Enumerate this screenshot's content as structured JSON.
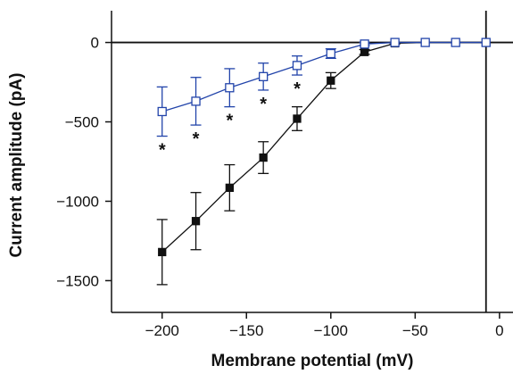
{
  "chart_data": {
    "type": "scatter",
    "title": "",
    "xlabel": "Membrane potential (mV)",
    "ylabel": "Current amplitude (pA)",
    "xlim": [
      -230,
      8
    ],
    "ylim": [
      -1700,
      200
    ],
    "xticks": [
      -200,
      -150,
      -100,
      -50,
      0
    ],
    "yticks": [
      0,
      -500,
      -1000,
      -1500
    ],
    "xtick_labels": [
      "−200",
      "−150",
      "−100",
      "−50",
      "0"
    ],
    "ytick_labels": [
      "0",
      "−500",
      "−1000",
      "−1500"
    ],
    "vertical_line_x": -8,
    "horizontal_line_y": 0,
    "grid": false,
    "series": [
      {
        "marker": "filled-square",
        "color": "#111111",
        "x": [
          -200,
          -180,
          -160,
          -140,
          -120,
          -100,
          -80,
          -62,
          -44,
          -26,
          -8
        ],
        "y": [
          -1320,
          -1125,
          -915,
          -725,
          -480,
          -240,
          -60,
          -5,
          0,
          0,
          0
        ],
        "err": [
          205,
          180,
          145,
          100,
          75,
          50,
          15,
          5,
          0,
          0,
          0
        ]
      },
      {
        "marker": "open-square",
        "color": "#2244aa",
        "x": [
          -200,
          -180,
          -160,
          -140,
          -120,
          -100,
          -80,
          -62,
          -44,
          -26,
          -8
        ],
        "y": [
          -435,
          -370,
          -285,
          -215,
          -145,
          -70,
          -10,
          0,
          0,
          0,
          0
        ],
        "err": [
          155,
          150,
          120,
          85,
          60,
          30,
          10,
          0,
          0,
          0,
          0
        ]
      }
    ],
    "annotations": [
      {
        "text": "*",
        "x": -200
      },
      {
        "text": "*",
        "x": -180
      },
      {
        "text": "*",
        "x": -160
      },
      {
        "text": "*",
        "x": -140
      },
      {
        "text": "*",
        "x": -120
      }
    ]
  }
}
